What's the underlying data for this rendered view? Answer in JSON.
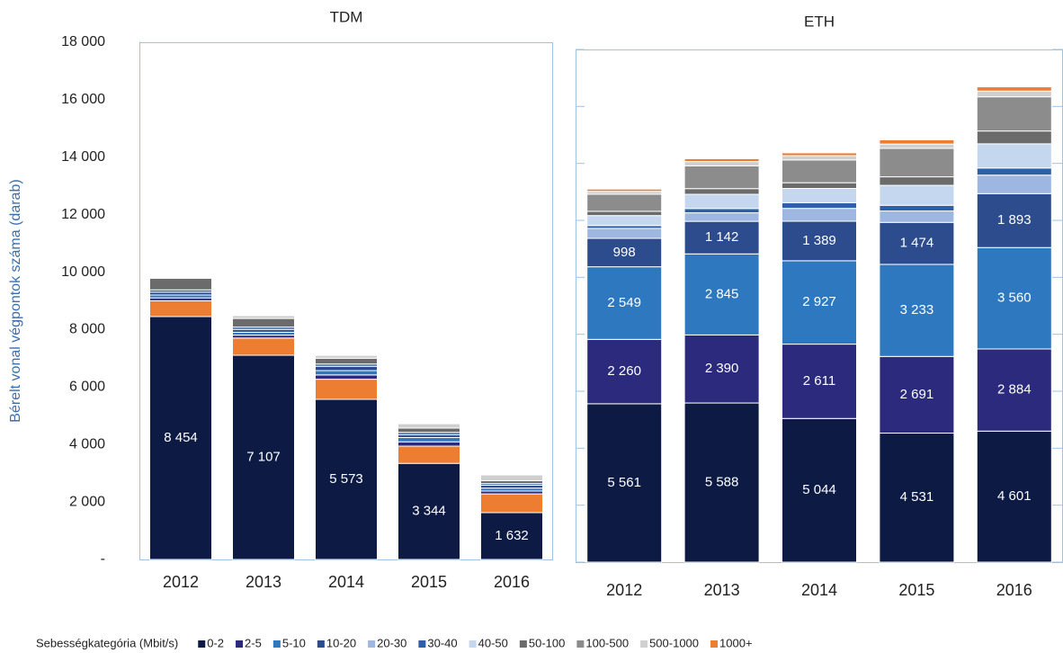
{
  "chart_data": [
    {
      "type": "bar",
      "stacked": true,
      "title": "TDM",
      "y_label": "Bérelt vonal végpontok száma (darab)",
      "categories": [
        "2012",
        "2013",
        "2014",
        "2015",
        "2016"
      ],
      "ylim": [
        0,
        18000
      ],
      "yticks": [
        {
          "value": 0,
          "label": "-"
        },
        {
          "value": 2000,
          "label": "2 000"
        },
        {
          "value": 4000,
          "label": "4 000"
        },
        {
          "value": 6000,
          "label": "6 000"
        },
        {
          "value": 8000,
          "label": "8 000"
        },
        {
          "value": 10000,
          "label": "10 000"
        },
        {
          "value": 12000,
          "label": "12 000"
        },
        {
          "value": 14000,
          "label": "14 000"
        },
        {
          "value": 16000,
          "label": "16 000"
        },
        {
          "value": 18000,
          "label": "18 000"
        }
      ],
      "series": [
        {
          "name": "0-2",
          "color": "#0c1a44",
          "values": [
            8454,
            7107,
            5573,
            3344,
            1632
          ],
          "value_labels": [
            "8 454",
            "7 107",
            "5 573",
            "3 344",
            "1 632"
          ]
        },
        {
          "name": "1000+",
          "color": "#ed7d31",
          "values": [
            550,
            600,
            700,
            600,
            650
          ]
        },
        {
          "name": "2-5",
          "color": "#2b2a7c",
          "values": [
            100,
            100,
            150,
            150,
            100
          ]
        },
        {
          "name": "5-10",
          "color": "#2e78c0",
          "values": [
            100,
            100,
            150,
            150,
            100
          ]
        },
        {
          "name": "10-20",
          "color": "#2c4c8e",
          "values": [
            100,
            100,
            150,
            100,
            100
          ]
        },
        {
          "name": "30-40",
          "color": "#2e60a8",
          "values": [
            80,
            80,
            80,
            80,
            60
          ]
        },
        {
          "name": "50-100",
          "color": "#6b6b6b",
          "values": [
            400,
            300,
            200,
            150,
            100
          ]
        },
        {
          "name": "500-1000",
          "color": "#cfcfcf",
          "values": [
            0,
            100,
            100,
            150,
            200
          ]
        }
      ]
    },
    {
      "type": "bar",
      "stacked": true,
      "title": "ETH",
      "legend_title": "Sebességkategória (Mbit/s)",
      "categories": [
        "2012",
        "2013",
        "2014",
        "2015",
        "2016"
      ],
      "ylim": [
        0,
        18000
      ],
      "yticks": [
        0,
        2000,
        4000,
        6000,
        8000,
        10000,
        12000,
        14000,
        16000,
        18000
      ],
      "series": [
        {
          "name": "0-2",
          "color": "#0c1a44",
          "values": [
            5561,
            5588,
            5044,
            4531,
            4601
          ],
          "value_labels": [
            "5 561",
            "5 588",
            "5 044",
            "4 531",
            "4 601"
          ]
        },
        {
          "name": "2-5",
          "color": "#2b2a7c",
          "values": [
            2260,
            2390,
            2611,
            2691,
            2884
          ],
          "value_labels": [
            "2 260",
            "2 390",
            "2 611",
            "2 691",
            "2 884"
          ]
        },
        {
          "name": "5-10",
          "color": "#2e78c0",
          "values": [
            2549,
            2845,
            2927,
            3233,
            3560
          ],
          "value_labels": [
            "2 549",
            "2 845",
            "2 927",
            "3 233",
            "3 560"
          ]
        },
        {
          "name": "10-20",
          "color": "#2c4c8e",
          "values": [
            998,
            1142,
            1389,
            1474,
            1893
          ],
          "value_labels": [
            "998",
            "1 142",
            "1 389",
            "1 474",
            "1 893"
          ]
        },
        {
          "name": "20-30",
          "color": "#9db7e0",
          "values": [
            350,
            300,
            450,
            400,
            650
          ]
        },
        {
          "name": "30-40",
          "color": "#2e60a8",
          "values": [
            100,
            150,
            200,
            200,
            250
          ]
        },
        {
          "name": "40-50",
          "color": "#c5d6ef",
          "values": [
            350,
            500,
            500,
            700,
            850
          ]
        },
        {
          "name": "50-100",
          "color": "#6b6b6b",
          "values": [
            150,
            200,
            200,
            300,
            450
          ]
        },
        {
          "name": "100-500",
          "color": "#8c8c8c",
          "values": [
            600,
            800,
            800,
            1000,
            1200
          ]
        },
        {
          "name": "500-1000",
          "color": "#cfcfcf",
          "values": [
            100,
            150,
            150,
            150,
            200
          ]
        },
        {
          "name": "1000+",
          "color": "#ed7d31",
          "values": [
            80,
            100,
            100,
            150,
            150
          ]
        }
      ]
    }
  ]
}
